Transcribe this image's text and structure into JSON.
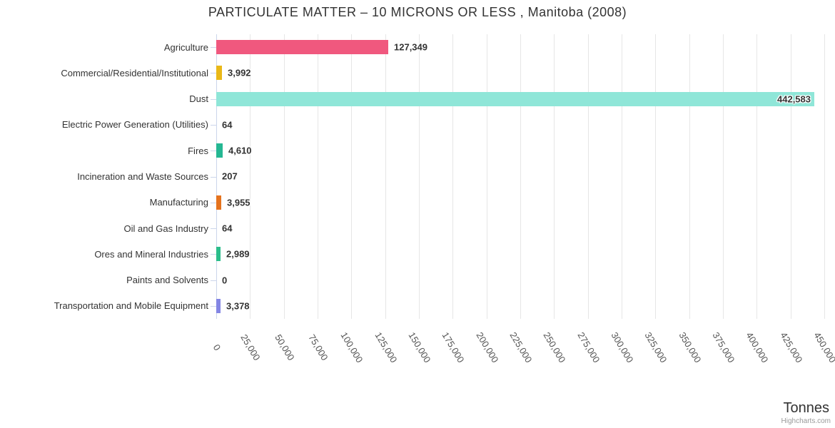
{
  "title": "PARTICULATE MATTER – 10 MICRONS OR LESS , Manitoba (2008)",
  "chart_data": {
    "type": "bar",
    "orientation": "horizontal",
    "title": "PARTICULATE MATTER – 10 MICRONS OR LESS , Manitoba (2008)",
    "categories": [
      "Agriculture",
      "Commercial/Residential/Institutional",
      "Dust",
      "Electric Power Generation (Utilities)",
      "Fires",
      "Incineration and Waste Sources",
      "Manufacturing",
      "Oil and Gas Industry",
      "Ores and Mineral Industries",
      "Paints and Solvents",
      "Transportation and Mobile Equipment"
    ],
    "values": [
      127349,
      3992,
      442583,
      64,
      4610,
      207,
      3955,
      64,
      2989,
      0,
      3378
    ],
    "value_labels": [
      "127,349",
      "3,992",
      "442,583",
      "64",
      "4,610",
      "207",
      "3,955",
      "64",
      "2,989",
      "0",
      "3,378"
    ],
    "bar_colors": [
      "#f0587e",
      "#e9b818",
      "#8fe6d8",
      "#bbbbbb",
      "#25b793",
      "#bbbbbb",
      "#e5731e",
      "#bbbbbb",
      "#2bbd8b",
      "#bbbbbb",
      "#8486e4"
    ],
    "xlim": [
      0,
      450000
    ],
    "x_ticks": [
      0,
      25000,
      50000,
      75000,
      100000,
      125000,
      150000,
      175000,
      200000,
      225000,
      250000,
      275000,
      300000,
      325000,
      350000,
      375000,
      400000,
      425000,
      450000
    ],
    "x_tick_labels": [
      "0",
      "25,000",
      "50,000",
      "75,000",
      "100,000",
      "125,000",
      "150,000",
      "175,000",
      "200,000",
      "225,000",
      "250,000",
      "275,000",
      "300,000",
      "325,000",
      "350,000",
      "375,000",
      "400,000",
      "425,000",
      "450,000"
    ],
    "axis_title": "Tonnes",
    "grid": true,
    "legend": false,
    "label_text_color": "#333333",
    "gridline_color": "#e6e6e6",
    "axis_line_color": "#ccd6eb",
    "credits": "Highcharts.com"
  }
}
